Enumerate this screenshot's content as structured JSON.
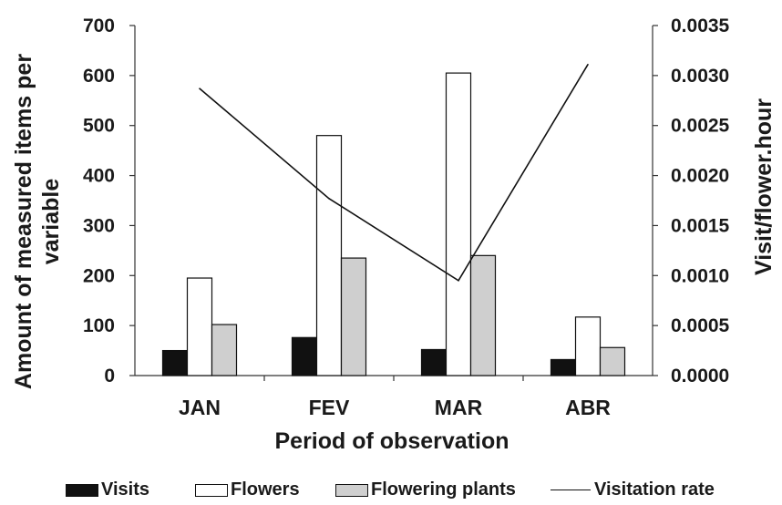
{
  "chart_data": {
    "type": "bar+line",
    "categories": [
      "JAN",
      "FEV",
      "MAR",
      "ABR"
    ],
    "series": [
      {
        "name": "Visits",
        "kind": "bar",
        "axis": "left",
        "color": "#111111",
        "values": [
          50,
          76,
          52,
          32
        ]
      },
      {
        "name": "Flowers",
        "kind": "bar",
        "axis": "left",
        "color": "#ffffff",
        "values": [
          195,
          480,
          605,
          117
        ]
      },
      {
        "name": "Flowering plants",
        "kind": "bar",
        "axis": "left",
        "color": "#cfcfcf",
        "values": [
          102,
          235,
          240,
          56
        ]
      },
      {
        "name": "Visitation rate",
        "kind": "line",
        "axis": "right",
        "color": "#111111",
        "values": [
          0.00287,
          0.00177,
          0.00095,
          0.00311
        ]
      }
    ],
    "xlabel": "Period of observation",
    "ylabel": "Amount of measured items per variable",
    "ylabel2": "Visit/flower.hour",
    "ylim": [
      0,
      700
    ],
    "ylim2": [
      0,
      0.0035
    ],
    "yticks": [
      "0",
      "100",
      "200",
      "300",
      "400",
      "500",
      "600",
      "700"
    ],
    "yticks2": [
      "0.0000",
      "0.0005",
      "0.0010",
      "0.0015",
      "0.0020",
      "0.0025",
      "0.0030",
      "0.0035"
    ],
    "legend_position": "bottom",
    "grid": false
  }
}
